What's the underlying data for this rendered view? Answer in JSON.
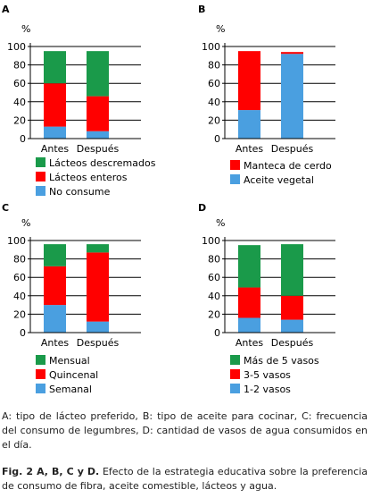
{
  "chart_data": [
    {
      "panel": "A",
      "type": "bar",
      "stacked": true,
      "ylabel": "%",
      "ylim": [
        0,
        100
      ],
      "yticks": [
        0,
        20,
        40,
        60,
        80,
        100
      ],
      "grid": true,
      "legend_position": "bottom",
      "categories": [
        "Antes",
        "Después"
      ],
      "series": [
        {
          "name": "No consume",
          "color": "#4a9fe0",
          "values": [
            13,
            8
          ]
        },
        {
          "name": "Lácteos enteros",
          "color": "#ff0000",
          "values": [
            47,
            38
          ]
        },
        {
          "name": "Lácteos descremados",
          "color": "#1a9a4a",
          "values": [
            35,
            49
          ]
        }
      ],
      "legend_order": [
        2,
        1,
        0
      ]
    },
    {
      "panel": "B",
      "type": "bar",
      "stacked": true,
      "ylabel": "%",
      "ylim": [
        0,
        100
      ],
      "yticks": [
        0,
        20,
        40,
        60,
        80,
        100
      ],
      "grid": true,
      "legend_position": "bottom",
      "categories": [
        "Antes",
        "Después"
      ],
      "series": [
        {
          "name": "Aceite vegetal",
          "color": "#4a9fe0",
          "values": [
            31,
            92
          ]
        },
        {
          "name": "Manteca de cerdo",
          "color": "#ff0000",
          "values": [
            64,
            2
          ]
        }
      ],
      "legend_order": [
        1,
        0
      ]
    },
    {
      "panel": "C",
      "type": "bar",
      "stacked": true,
      "ylabel": "%",
      "ylim": [
        0,
        100
      ],
      "yticks": [
        0,
        20,
        40,
        60,
        80,
        100
      ],
      "grid": true,
      "legend_position": "bottom",
      "categories": [
        "Antes",
        "Después"
      ],
      "series": [
        {
          "name": "Semanal",
          "color": "#4a9fe0",
          "values": [
            30,
            12
          ]
        },
        {
          "name": "Quincenal",
          "color": "#ff0000",
          "values": [
            42,
            75
          ]
        },
        {
          "name": "Mensual",
          "color": "#1a9a4a",
          "values": [
            24,
            9
          ]
        }
      ],
      "legend_order": [
        2,
        1,
        0
      ]
    },
    {
      "panel": "D",
      "type": "bar",
      "stacked": true,
      "ylabel": "%",
      "ylim": [
        0,
        100
      ],
      "yticks": [
        0,
        20,
        40,
        60,
        80,
        100
      ],
      "grid": true,
      "legend_position": "bottom",
      "categories": [
        "Antes",
        "Después"
      ],
      "series": [
        {
          "name": "1-2 vasos",
          "color": "#4a9fe0",
          "values": [
            16,
            14
          ]
        },
        {
          "name": "3-5 vasos",
          "color": "#ff0000",
          "values": [
            33,
            26
          ]
        },
        {
          "name": "Más de 5 vasos",
          "color": "#1a9a4a",
          "values": [
            46,
            56
          ]
        }
      ],
      "legend_order": [
        2,
        1,
        0
      ]
    }
  ],
  "captions": {
    "note": "A: tipo de lácteo preferido, B: tipo de aceite para cocinar, C: frecuencia del consumo de legumbres, D: cantidad de vasos de agua consumidos en el día.",
    "figure_label": "Fig. 2 A, B, C y D.",
    "figure_text": " Efecto de la estrategia educativa sobre la preferencia de consumo de fibra, aceite comestible, lácteos y agua."
  }
}
